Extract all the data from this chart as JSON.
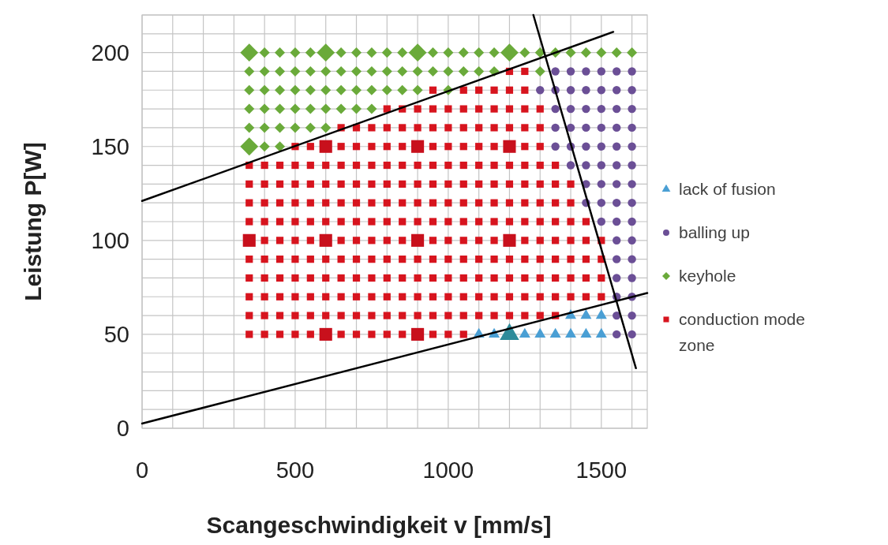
{
  "chart_data": {
    "type": "scatter",
    "xlabel": "Scangeschwindigkeit v [mm/s]",
    "ylabel": "Leistung P[W]",
    "xlim": [
      0,
      1650
    ],
    "ylim": [
      0,
      220
    ],
    "xticks": [
      0,
      {
        "value": 100,
        "label": null
      },
      {
        "value": 200,
        "label": null
      },
      {
        "value": 300,
        "label": null
      },
      {
        "value": 400,
        "label": null
      },
      500,
      {
        "value": 600,
        "label": null
      },
      {
        "value": 700,
        "label": null
      },
      {
        "value": 800,
        "label": null
      },
      {
        "value": 900,
        "label": null
      },
      1000,
      {
        "value": 1100,
        "label": null
      },
      {
        "value": 1200,
        "label": null
      },
      {
        "value": 1300,
        "label": null
      },
      {
        "value": 1400,
        "label": null
      },
      1500,
      {
        "value": 1600,
        "label": null
      }
    ],
    "yticks": [
      0,
      {
        "value": 10,
        "label": null
      },
      {
        "value": 20,
        "label": null
      },
      {
        "value": 30,
        "label": null
      },
      {
        "value": 40,
        "label": null
      },
      50,
      {
        "value": 60,
        "label": null
      },
      {
        "value": 70,
        "label": null
      },
      {
        "value": 80,
        "label": null
      },
      {
        "value": 90,
        "label": null
      },
      100,
      {
        "value": 110,
        "label": null
      },
      {
        "value": 120,
        "label": null
      },
      {
        "value": 130,
        "label": null
      },
      {
        "value": 140,
        "label": null
      },
      150,
      {
        "value": 160,
        "label": null
      },
      {
        "value": 170,
        "label": null
      },
      {
        "value": 180,
        "label": null
      },
      {
        "value": 190,
        "label": null
      },
      200,
      {
        "value": 210,
        "label": null
      },
      {
        "value": 220,
        "label": null
      }
    ],
    "grid": true,
    "legend": "right",
    "series": [
      {
        "name": "lack of fusion",
        "color": "#4a9fd4",
        "marker": "triangle",
        "x": [
          1400,
          1450,
          1500,
          1100,
          1150,
          1250,
          1300,
          1350,
          1400,
          1450,
          1500
        ],
        "values": [
          60,
          60,
          60,
          50,
          50,
          50,
          50,
          50,
          50,
          50,
          50
        ]
      },
      {
        "name": "balling up",
        "color": "#6b4f96",
        "marker": "circle",
        "x": [
          1350,
          1400,
          1450,
          1500,
          1550,
          1600,
          1300,
          1350,
          1400,
          1450,
          1500,
          1550,
          1600,
          1350,
          1400,
          1450,
          1500,
          1550,
          1600,
          1350,
          1400,
          1450,
          1500,
          1550,
          1600,
          1350,
          1400,
          1450,
          1500,
          1550,
          1600,
          1400,
          1450,
          1500,
          1550,
          1600,
          1450,
          1500,
          1550,
          1600,
          1450,
          1500,
          1550,
          1600,
          1500,
          1550,
          1600,
          1550,
          1600,
          1550,
          1600,
          1550,
          1600,
          1550,
          1600,
          1550,
          1600,
          1550,
          1600
        ],
        "values": [
          190,
          190,
          190,
          190,
          190,
          190,
          180,
          180,
          180,
          180,
          180,
          180,
          180,
          170,
          170,
          170,
          170,
          170,
          170,
          160,
          160,
          160,
          160,
          160,
          160,
          150,
          150,
          150,
          150,
          150,
          150,
          140,
          140,
          140,
          140,
          140,
          130,
          130,
          130,
          130,
          120,
          120,
          120,
          120,
          110,
          110,
          110,
          100,
          100,
          90,
          90,
          80,
          80,
          70,
          70,
          60,
          60,
          50,
          50
        ]
      },
      {
        "name": "keyhole",
        "color": "#6aaa3a",
        "marker": "diamond",
        "x": [
          400,
          450,
          500,
          550,
          650,
          700,
          750,
          800,
          850,
          950,
          1000,
          1050,
          1100,
          1150,
          1250,
          1300,
          1350,
          1400,
          1450,
          1500,
          1550,
          1600,
          350,
          400,
          450,
          500,
          550,
          600,
          650,
          700,
          750,
          800,
          850,
          900,
          950,
          1000,
          1050,
          1100,
          1150,
          1300,
          350,
          400,
          450,
          500,
          550,
          600,
          650,
          700,
          750,
          800,
          850,
          900,
          1000,
          350,
          400,
          450,
          500,
          550,
          600,
          650,
          700,
          750,
          350,
          400,
          450,
          500,
          550,
          600,
          400,
          450
        ],
        "values": [
          200,
          200,
          200,
          200,
          200,
          200,
          200,
          200,
          200,
          200,
          200,
          200,
          200,
          200,
          200,
          200,
          200,
          200,
          200,
          200,
          200,
          200,
          190,
          190,
          190,
          190,
          190,
          190,
          190,
          190,
          190,
          190,
          190,
          190,
          190,
          190,
          190,
          190,
          190,
          190,
          180,
          180,
          180,
          180,
          180,
          180,
          180,
          180,
          180,
          180,
          180,
          180,
          180,
          170,
          170,
          170,
          170,
          170,
          170,
          170,
          170,
          170,
          160,
          160,
          160,
          160,
          160,
          160,
          150,
          150
        ]
      },
      {
        "name": "conduction mode zone",
        "color": "#d7141e",
        "marker": "square",
        "x": [
          1200,
          1250,
          950,
          1050,
          1100,
          1150,
          1200,
          1250,
          800,
          850,
          900,
          950,
          1000,
          1050,
          1100,
          1150,
          1200,
          1250,
          1300,
          650,
          700,
          750,
          800,
          850,
          900,
          950,
          1000,
          1050,
          1100,
          1150,
          1200,
          1250,
          1300,
          500,
          550,
          650,
          700,
          750,
          800,
          850,
          950,
          1000,
          1050,
          1100,
          1150,
          1250,
          1300,
          350,
          400,
          450,
          500,
          550,
          600,
          650,
          700,
          750,
          800,
          850,
          900,
          950,
          1000,
          1050,
          1100,
          1150,
          1200,
          1250,
          1300,
          1350,
          350,
          400,
          450,
          500,
          550,
          600,
          650,
          700,
          750,
          800,
          850,
          900,
          950,
          1000,
          1050,
          1100,
          1150,
          1200,
          1250,
          1300,
          1350,
          1400,
          350,
          400,
          450,
          500,
          550,
          600,
          650,
          700,
          750,
          800,
          850,
          900,
          950,
          1000,
          1050,
          1100,
          1150,
          1200,
          1250,
          1300,
          1350,
          1400,
          350,
          400,
          450,
          500,
          550,
          600,
          650,
          700,
          750,
          800,
          850,
          900,
          950,
          1000,
          1050,
          1100,
          1150,
          1200,
          1250,
          1300,
          1350,
          1400,
          1450,
          400,
          450,
          500,
          550,
          650,
          700,
          750,
          800,
          850,
          950,
          1000,
          1050,
          1100,
          1150,
          1250,
          1300,
          1350,
          1400,
          1450,
          1500,
          350,
          400,
          450,
          500,
          550,
          600,
          650,
          700,
          750,
          800,
          850,
          900,
          950,
          1000,
          1050,
          1100,
          1150,
          1200,
          1250,
          1300,
          1350,
          1400,
          1450,
          1500,
          350,
          400,
          450,
          500,
          550,
          600,
          650,
          700,
          750,
          800,
          850,
          900,
          950,
          1000,
          1050,
          1100,
          1150,
          1200,
          1250,
          1300,
          1350,
          1400,
          1450,
          1500,
          350,
          400,
          450,
          500,
          550,
          600,
          650,
          700,
          750,
          800,
          850,
          900,
          950,
          1000,
          1050,
          1100,
          1150,
          1200,
          1250,
          1300,
          1350,
          1400,
          1450,
          1500,
          350,
          400,
          450,
          500,
          550,
          600,
          650,
          700,
          750,
          800,
          850,
          900,
          950,
          1000,
          1050,
          1100,
          1150,
          1200,
          1250,
          1300,
          1350,
          350,
          400,
          450,
          500,
          550,
          650,
          700,
          750,
          800,
          850,
          950,
          1000,
          1050
        ],
        "values": [
          190,
          190,
          180,
          180,
          180,
          180,
          180,
          180,
          170,
          170,
          170,
          170,
          170,
          170,
          170,
          170,
          170,
          170,
          170,
          160,
          160,
          160,
          160,
          160,
          160,
          160,
          160,
          160,
          160,
          160,
          160,
          160,
          160,
          150,
          150,
          150,
          150,
          150,
          150,
          150,
          150,
          150,
          150,
          150,
          150,
          150,
          150,
          140,
          140,
          140,
          140,
          140,
          140,
          140,
          140,
          140,
          140,
          140,
          140,
          140,
          140,
          140,
          140,
          140,
          140,
          140,
          140,
          140,
          130,
          130,
          130,
          130,
          130,
          130,
          130,
          130,
          130,
          130,
          130,
          130,
          130,
          130,
          130,
          130,
          130,
          130,
          130,
          130,
          130,
          130,
          120,
          120,
          120,
          120,
          120,
          120,
          120,
          120,
          120,
          120,
          120,
          120,
          120,
          120,
          120,
          120,
          120,
          120,
          120,
          120,
          120,
          120,
          110,
          110,
          110,
          110,
          110,
          110,
          110,
          110,
          110,
          110,
          110,
          110,
          110,
          110,
          110,
          110,
          110,
          110,
          110,
          110,
          110,
          110,
          110,
          100,
          100,
          100,
          100,
          100,
          100,
          100,
          100,
          100,
          100,
          100,
          100,
          100,
          100,
          100,
          100,
          100,
          100,
          100,
          100,
          90,
          90,
          90,
          90,
          90,
          90,
          90,
          90,
          90,
          90,
          90,
          90,
          90,
          90,
          90,
          90,
          90,
          90,
          90,
          90,
          90,
          90,
          90,
          90,
          80,
          80,
          80,
          80,
          80,
          80,
          80,
          80,
          80,
          80,
          80,
          80,
          80,
          80,
          80,
          80,
          80,
          80,
          80,
          80,
          80,
          80,
          80,
          80,
          70,
          70,
          70,
          70,
          70,
          70,
          70,
          70,
          70,
          70,
          70,
          70,
          70,
          70,
          70,
          70,
          70,
          70,
          70,
          70,
          70,
          70,
          70,
          70,
          60,
          60,
          60,
          60,
          60,
          60,
          60,
          60,
          60,
          60,
          60,
          60,
          60,
          60,
          60,
          60,
          60,
          60,
          60,
          60,
          60,
          50,
          50,
          50,
          50,
          50,
          50,
          50,
          50,
          50,
          50,
          50,
          50,
          50
        ]
      },
      {
        "type": "bubble",
        "color": "#6aaa3a",
        "marker": "diamond",
        "x": [
          350,
          600,
          900,
          1200,
          350
        ],
        "values": [
          200,
          200,
          200,
          200,
          150
        ],
        "sizes": [
          1,
          1,
          1,
          1,
          1
        ]
      },
      {
        "type": "bubble",
        "color": "#c8101c",
        "marker": "square",
        "x": [
          600,
          900,
          1200,
          350,
          600,
          900,
          1200,
          600,
          900
        ],
        "values": [
          150,
          150,
          150,
          100,
          100,
          100,
          100,
          50,
          50
        ],
        "sizes": [
          1,
          1,
          1,
          1,
          1,
          1,
          1,
          1,
          1
        ]
      },
      {
        "type": "bubble",
        "color": "#2e8b9a",
        "marker": "triangle",
        "x": [
          1200
        ],
        "values": [
          50
        ],
        "sizes": [
          1
        ]
      },
      {
        "type": "line",
        "color": "#000000",
        "x": [
          0,
          1539
        ],
        "values": [
          121,
          211
        ]
      },
      {
        "type": "line",
        "color": "#000000",
        "x": [
          0,
          1650
        ],
        "values": [
          2.5,
          72
        ]
      },
      {
        "type": "line",
        "color": "#000000",
        "x": [
          1278,
          1613
        ],
        "values": [
          220,
          32
        ]
      }
    ]
  }
}
